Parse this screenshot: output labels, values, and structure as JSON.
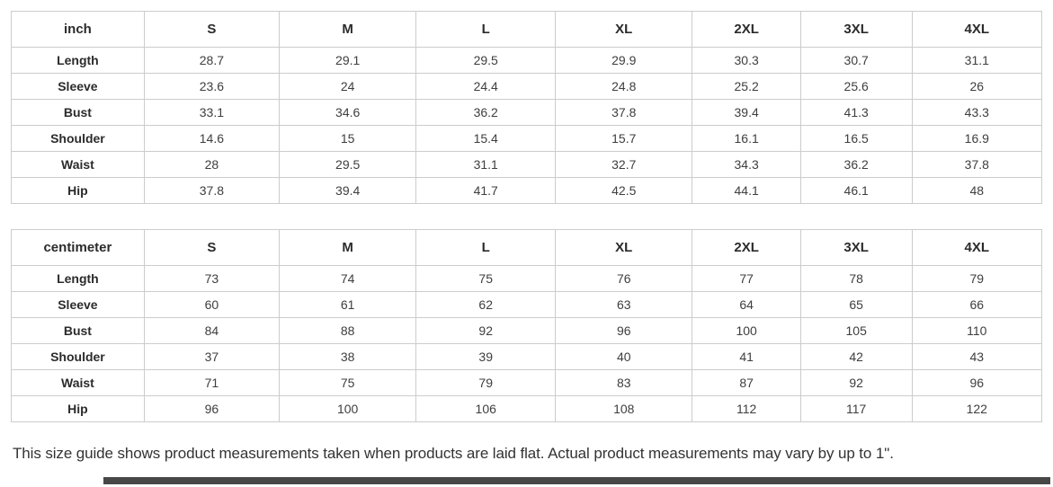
{
  "page": {
    "footer_note": "This size guide shows product measurements taken when products are laid flat. Actual product measurements may vary by up to 1\"."
  },
  "tables": [
    {
      "unit_label": "inch",
      "size_headers": [
        "S",
        "M",
        "L",
        "XL",
        "2XL",
        "3XL",
        "4XL"
      ],
      "rows": [
        {
          "label": "Length",
          "values": [
            "28.7",
            "29.1",
            "29.5",
            "29.9",
            "30.3",
            "30.7",
            "31.1"
          ]
        },
        {
          "label": "Sleeve",
          "values": [
            "23.6",
            "24",
            "24.4",
            "24.8",
            "25.2",
            "25.6",
            "26"
          ]
        },
        {
          "label": "Bust",
          "values": [
            "33.1",
            "34.6",
            "36.2",
            "37.8",
            "39.4",
            "41.3",
            "43.3"
          ]
        },
        {
          "label": "Shoulder",
          "values": [
            "14.6",
            "15",
            "15.4",
            "15.7",
            "16.1",
            "16.5",
            "16.9"
          ]
        },
        {
          "label": "Waist",
          "values": [
            "28",
            "29.5",
            "31.1",
            "32.7",
            "34.3",
            "36.2",
            "37.8"
          ]
        },
        {
          "label": "Hip",
          "values": [
            "37.8",
            "39.4",
            "41.7",
            "42.5",
            "44.1",
            "46.1",
            "48"
          ]
        }
      ]
    },
    {
      "unit_label": "centimeter",
      "size_headers": [
        "S",
        "M",
        "L",
        "XL",
        "2XL",
        "3XL",
        "4XL"
      ],
      "rows": [
        {
          "label": "Length",
          "values": [
            "73",
            "74",
            "75",
            "76",
            "77",
            "78",
            "79"
          ]
        },
        {
          "label": "Sleeve",
          "values": [
            "60",
            "61",
            "62",
            "63",
            "64",
            "65",
            "66"
          ]
        },
        {
          "label": "Bust",
          "values": [
            "84",
            "88",
            "92",
            "96",
            "100",
            "105",
            "110"
          ]
        },
        {
          "label": "Shoulder",
          "values": [
            "37",
            "38",
            "39",
            "40",
            "41",
            "42",
            "43"
          ]
        },
        {
          "label": "Waist",
          "values": [
            "71",
            "75",
            "79",
            "83",
            "87",
            "92",
            "96"
          ]
        },
        {
          "label": "Hip",
          "values": [
            "96",
            "100",
            "106",
            "108",
            "112",
            "117",
            "122"
          ]
        }
      ]
    }
  ],
  "colors": {
    "table_border": "#cccccc",
    "header_text": "#2b2b2b",
    "cell_text": "#3e3e3e",
    "note_text": "#333333",
    "bottom_bar": "#474747"
  }
}
